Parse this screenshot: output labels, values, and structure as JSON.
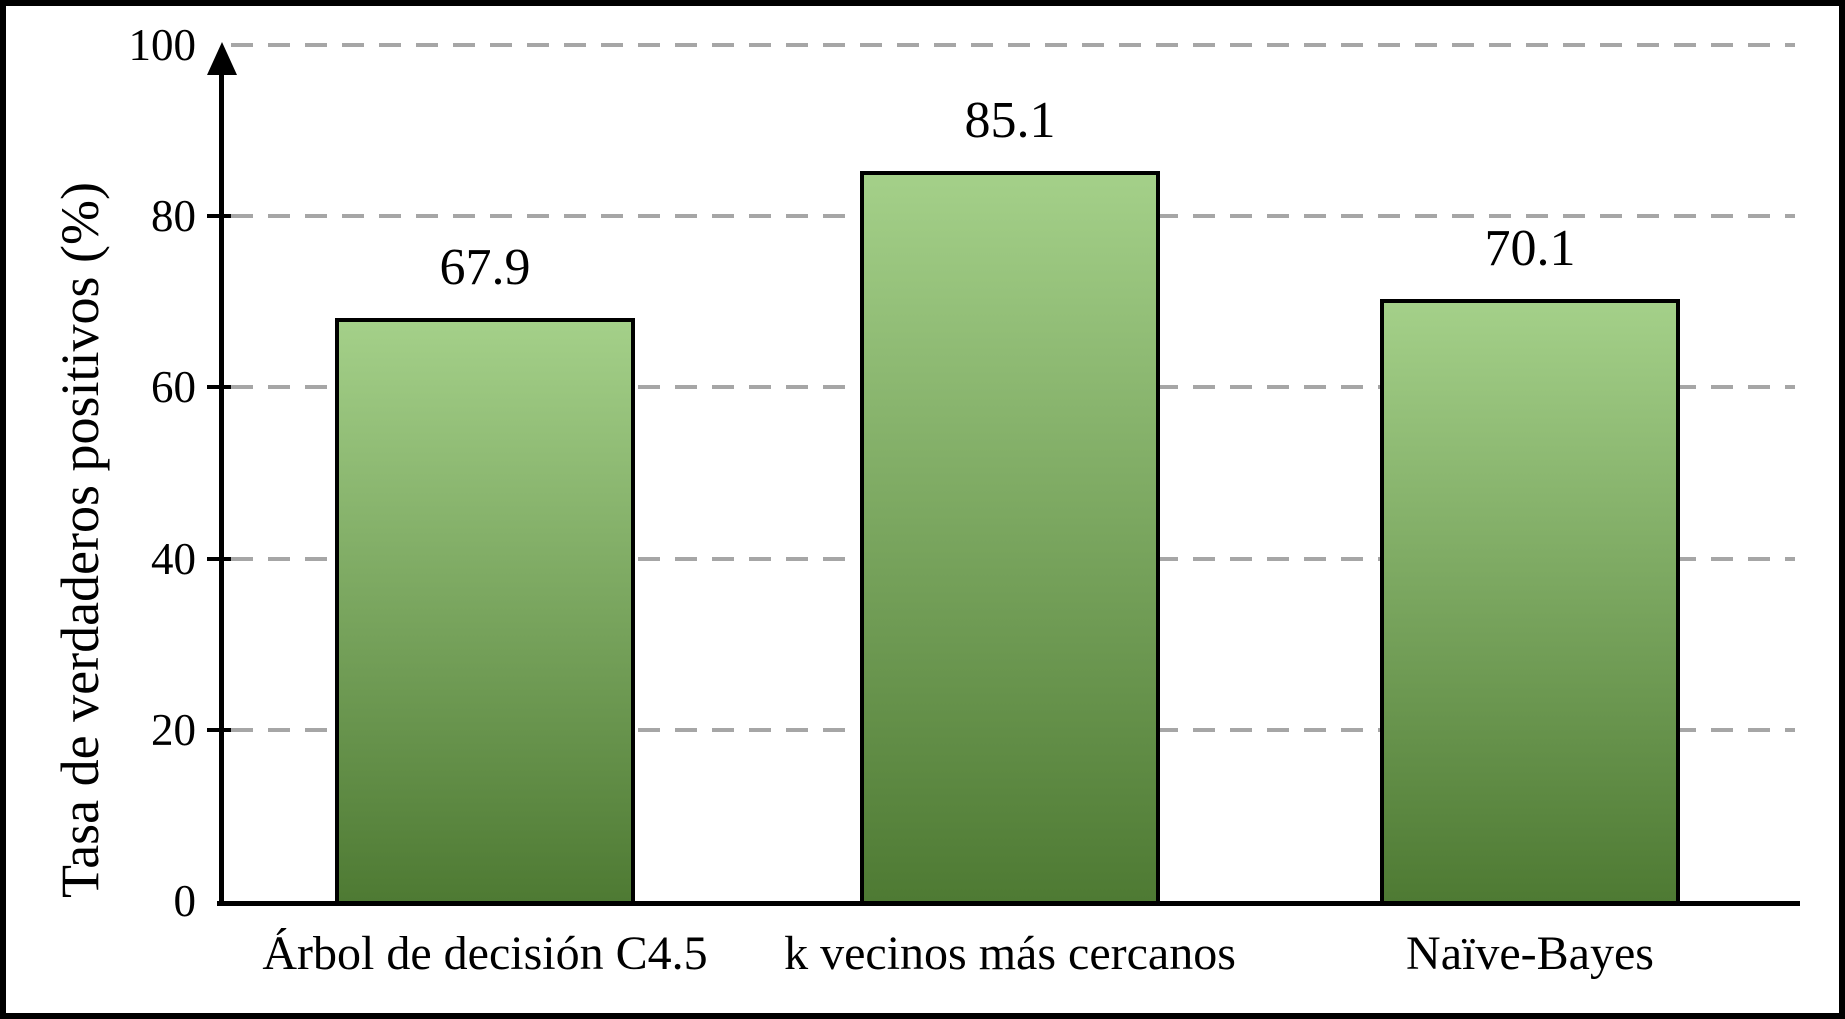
{
  "chart_data": {
    "type": "bar",
    "title": "",
    "xlabel": "",
    "ylabel": "Tasa de verdaderos positivos (%)",
    "categories": [
      "Árbol de decisión C4.5",
      "k vecinos más cercanos",
      "Naïve-Bayes"
    ],
    "values": [
      67.9,
      85.1,
      70.1
    ],
    "value_labels": [
      "67.9",
      "85.1",
      "70.1"
    ],
    "yticks": [
      0,
      20,
      40,
      60,
      80,
      100
    ],
    "ylim": [
      0,
      100
    ],
    "grid": "horizontal-dashed",
    "legend_position": "none",
    "colors": {
      "bar_gradient_top": "#a4d089",
      "bar_gradient_bottom": "#4e7a33",
      "bar_border": "#000000",
      "gridline": "#a6a6a6",
      "axis": "#000000",
      "background": "#ffffff",
      "text": "#000000"
    }
  }
}
